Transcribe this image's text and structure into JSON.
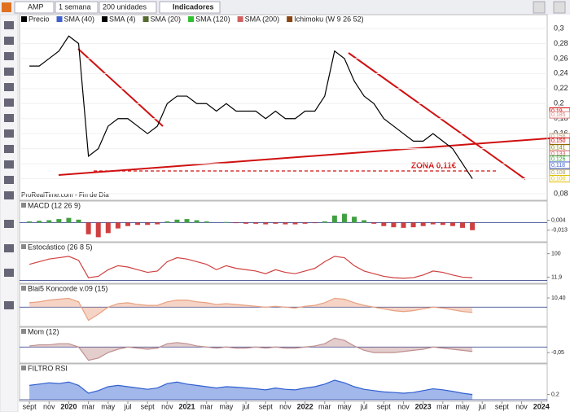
{
  "toolbar": {
    "symbol": "AMP",
    "period": "1 semana",
    "units": "200 unidades",
    "indicators": "Indicadores"
  },
  "chart_data": {
    "type": "line",
    "legend": [
      {
        "name": "Precio",
        "color": "#000000"
      },
      {
        "name": "SMA (40)",
        "color": "#4060d0"
      },
      {
        "name": "SMA (4)",
        "color": "#000000"
      },
      {
        "name": "SMA (20)",
        "color": "#556b2f"
      },
      {
        "name": "SMA (120)",
        "color": "#30c030"
      },
      {
        "name": "SMA (200)",
        "color": "#d06060"
      },
      {
        "name": "Ichimoku (W 9 26 52)",
        "color": "#8b4513"
      }
    ],
    "source": "ProRealTime.com - Fin de Día",
    "annotation": "ZONA 0,11€",
    "x": [
      0,
      1,
      2,
      3,
      4,
      5,
      6,
      7,
      8,
      9,
      10,
      11,
      12,
      13,
      14,
      15,
      16,
      17,
      18,
      19,
      20,
      21,
      22,
      23,
      24,
      25,
      26,
      27,
      28,
      29,
      30,
      31,
      32,
      33,
      34,
      35,
      36,
      37,
      38,
      39,
      40,
      41,
      42,
      43,
      44,
      45
    ],
    "series": [
      {
        "name": "Precio",
        "color": "#000000",
        "values": [
          0.25,
          0.25,
          0.26,
          0.27,
          0.29,
          0.28,
          0.13,
          0.14,
          0.17,
          0.18,
          0.18,
          0.17,
          0.16,
          0.17,
          0.2,
          0.21,
          0.21,
          0.2,
          0.2,
          0.19,
          0.2,
          0.19,
          0.19,
          0.19,
          0.18,
          0.19,
          0.18,
          0.18,
          0.19,
          0.19,
          0.21,
          0.27,
          0.26,
          0.23,
          0.21,
          0.2,
          0.18,
          0.17,
          0.16,
          0.15,
          0.15,
          0.16,
          0.15,
          0.14,
          0.12,
          0.1
        ]
      }
    ],
    "xlim": [
      -1,
      52.6
    ],
    "xticks": [
      {
        "value": 0,
        "label": "sept"
      },
      {
        "value": 2,
        "label": "nov"
      },
      {
        "value": 4,
        "label": "2020"
      },
      {
        "value": 6,
        "label": "mar"
      },
      {
        "value": 8,
        "label": "may"
      },
      {
        "value": 10,
        "label": "jul"
      },
      {
        "value": 12,
        "label": "sept"
      },
      {
        "value": 14,
        "label": "nov"
      },
      {
        "value": 16,
        "label": "2021"
      },
      {
        "value": 18,
        "label": "mar"
      },
      {
        "value": 20,
        "label": "may"
      },
      {
        "value": 22,
        "label": "jul"
      },
      {
        "value": 24,
        "label": "sept"
      },
      {
        "value": 26,
        "label": "nov"
      },
      {
        "value": 28,
        "label": "2022"
      },
      {
        "value": 30,
        "label": "mar"
      },
      {
        "value": 32,
        "label": "may"
      },
      {
        "value": 34,
        "label": "jul"
      },
      {
        "value": 36,
        "label": "sept"
      },
      {
        "value": 38,
        "label": "nov"
      },
      {
        "value": 40,
        "label": "2023"
      },
      {
        "value": 42,
        "label": "mar"
      },
      {
        "value": 44,
        "label": "may"
      },
      {
        "value": 46,
        "label": "jul"
      },
      {
        "value": 48,
        "label": "sept"
      },
      {
        "value": 50,
        "label": "nov"
      },
      {
        "value": 52,
        "label": "2024"
      }
    ],
    "ylim": [
      0.0724,
      0.3076
    ],
    "yticks": [
      {
        "value": 0.3,
        "label": "0,3"
      },
      {
        "value": 0.28,
        "label": "0,28"
      },
      {
        "value": 0.26,
        "label": "0,26"
      },
      {
        "value": 0.24,
        "label": "0,24"
      },
      {
        "value": 0.22,
        "label": "0,22"
      },
      {
        "value": 0.2,
        "label": "0,2"
      },
      {
        "value": 0.18,
        "label": "0,18"
      },
      {
        "value": 0.16,
        "label": "0,16"
      },
      {
        "value": 0.14,
        "label": "0,14"
      },
      {
        "value": 0.12,
        "label": "0,12"
      },
      {
        "value": 0.1,
        "label": "0,1"
      },
      {
        "value": 0.08,
        "label": "0,08"
      }
    ],
    "price_labels": [
      {
        "value": 0.19,
        "label": "0,19",
        "color": "#d00000"
      },
      {
        "value": 0.185,
        "label": "0,185",
        "color": "#e08080"
      },
      {
        "value": 0.156,
        "label": "0,156",
        "color": "#c0a080"
      },
      {
        "value": 0.15,
        "label": "0,150",
        "color": "#d00000"
      },
      {
        "value": 0.141,
        "label": "0,141",
        "color": "#808000"
      },
      {
        "value": 0.133,
        "label": "0,133",
        "color": "#d06060"
      },
      {
        "value": 0.126,
        "label": "0,126",
        "color": "#30a030"
      },
      {
        "value": 0.118,
        "label": "0,118",
        "color": "#4060d0"
      },
      {
        "value": 0.108,
        "label": "0,108",
        "color": "#b0a060"
      },
      {
        "value": 0.1,
        "label": "0,100",
        "color": "#e0c000"
      }
    ]
  },
  "indicators": [
    {
      "title": "MACD (12 26 9)",
      "type": "bar",
      "color": "#40a040",
      "color_neg": "#d04040",
      "ylim": [
        -0.03,
        0.02
      ],
      "values": [
        0.002,
        0.003,
        0.004,
        0.006,
        0.008,
        0.005,
        -0.02,
        -0.025,
        -0.018,
        -0.01,
        -0.006,
        -0.004,
        -0.004,
        -0.003,
        0.002,
        0.005,
        0.006,
        0.004,
        0.002,
        0.0,
        0.001,
        -0.001,
        -0.002,
        -0.002,
        -0.003,
        -0.002,
        -0.003,
        -0.003,
        -0.002,
        -0.001,
        0.002,
        0.012,
        0.015,
        0.01,
        0.004,
        -0.002,
        -0.006,
        -0.008,
        -0.009,
        -0.008,
        -0.006,
        -0.003,
        -0.004,
        -0.006,
        -0.009,
        -0.013
      ],
      "yticks": [
        {
          "value": 0.004,
          "label": "0,004"
        },
        {
          "value": -0.013,
          "label": "-0,013"
        }
      ]
    },
    {
      "title": "Estocástico (26 8 5)",
      "type": "line",
      "color": "#d04040",
      "ylim": [
        -5,
        105
      ],
      "values": [
        60,
        70,
        80,
        85,
        90,
        75,
        10,
        15,
        40,
        55,
        50,
        40,
        30,
        35,
        70,
        85,
        80,
        70,
        60,
        40,
        55,
        45,
        40,
        35,
        25,
        40,
        30,
        25,
        35,
        45,
        70,
        90,
        85,
        55,
        35,
        25,
        15,
        10,
        8,
        10,
        20,
        35,
        30,
        20,
        12,
        10
      ],
      "yticks": [
        100,
        {
          "value": 11.9,
          "label": "11,9"
        }
      ]
    },
    {
      "title": "Blai5 Koncorde v.09 (15)",
      "type": "area",
      "color": "#e8a080",
      "ylim": [
        -20,
        15
      ],
      "values": [
        5,
        6,
        8,
        9,
        10,
        6,
        -15,
        -8,
        0,
        4,
        5,
        3,
        2,
        2,
        6,
        8,
        8,
        6,
        5,
        3,
        4,
        3,
        2,
        1,
        0,
        1,
        0,
        -1,
        1,
        2,
        5,
        10,
        9,
        5,
        2,
        0,
        -2,
        -4,
        -5,
        -4,
        -2,
        0,
        -1,
        -3,
        -5,
        -6
      ],
      "yticks": [
        {
          "value": 10.4,
          "label": "10,40"
        }
      ]
    },
    {
      "title": "Mom (12)",
      "type": "area",
      "color": "#c09090",
      "ylim": [
        -0.13,
        0.09
      ],
      "values": [
        0.01,
        0.02,
        0.02,
        0.03,
        0.03,
        0.0,
        -0.12,
        -0.1,
        -0.05,
        -0.02,
        0.0,
        -0.01,
        -0.02,
        -0.01,
        0.03,
        0.04,
        0.03,
        0.01,
        0.0,
        -0.01,
        0.0,
        -0.01,
        -0.01,
        0.0,
        -0.01,
        0.0,
        -0.01,
        -0.01,
        0.0,
        0.01,
        0.03,
        0.08,
        0.06,
        0.01,
        -0.03,
        -0.05,
        -0.05,
        -0.05,
        -0.04,
        -0.03,
        -0.02,
        0.0,
        -0.01,
        -0.02,
        -0.03,
        -0.04
      ],
      "yticks": [
        {
          "value": -0.05,
          "label": "-0,05"
        }
      ]
    },
    {
      "title": "FILTRO RSI",
      "type": "area",
      "color": "#3060d0",
      "ylim": [
        0,
        100
      ],
      "values": [
        55,
        60,
        65,
        62,
        68,
        55,
        25,
        35,
        50,
        55,
        50,
        45,
        40,
        45,
        62,
        68,
        60,
        55,
        50,
        45,
        50,
        48,
        45,
        42,
        38,
        45,
        40,
        38,
        45,
        50,
        60,
        75,
        65,
        50,
        40,
        35,
        30,
        28,
        25,
        28,
        35,
        42,
        38,
        32,
        25,
        20
      ],
      "yticks": [
        {
          "value": 20,
          "label": "0,2"
        }
      ]
    }
  ]
}
